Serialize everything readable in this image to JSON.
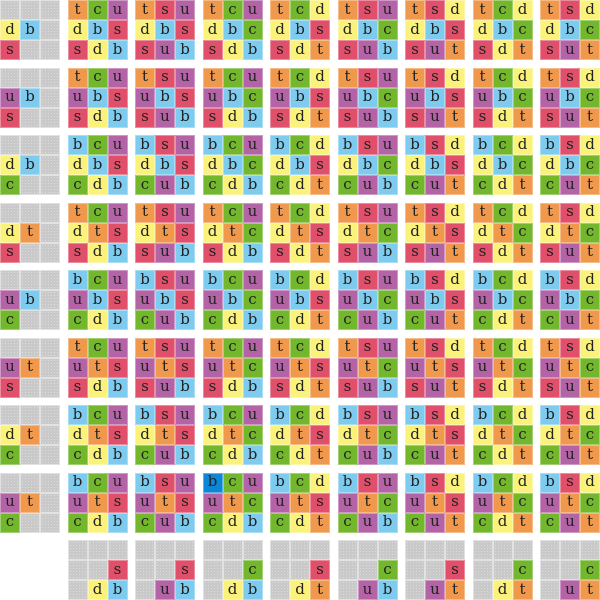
{
  "empty_marker": ".",
  "letter_colors": {
    "t": "#f0984c",
    "c": "#73b72c",
    "u": "#b464a6",
    "s": "#e0506b",
    "d": "#fbf27c",
    "b": "#7dcbef"
  },
  "selected_color": "#0b87d6",
  "selected": {
    "row": 7,
    "col": 3,
    "cell": 0
  },
  "grid": [
    [
      "...db.s..",
      "tcudbssdb",
      "tsudbssub",
      "tcudbcsdb",
      "tcddbssdt",
      "tsudbcsub",
      "tsddbssut",
      "tcddbcsdt",
      "tsddbcsut"
    ],
    [
      "...ub.s..",
      "tcuubssdb",
      "tsuubssub",
      "tcuubcsdb",
      "tcdubssdt",
      "tsuubcsub",
      "tsdubssut",
      "tcdubcsdt",
      "tsdubcsut"
    ],
    [
      "...db.c..",
      "bcudbscdb",
      "bsudbscub",
      "bcudbccdb",
      "bcddbscdt",
      "bsudbccub",
      "bsddbscut",
      "bcddbccdt",
      "bsddbccut"
    ],
    [
      "...dt.s..",
      "tcudtssdb",
      "tsudtssub",
      "tcudtcsdb",
      "tcddtssdt",
      "tsudtcsub",
      "tsddtssut",
      "tcddtcsdt",
      "tsddtcsut"
    ],
    [
      "...ub.c..",
      "bcuubscdb",
      "bsuubscub",
      "bcuubccdb",
      "bcdubscdt",
      "bsuubccub",
      "bsdubscut",
      "bcdubccdt",
      "bsdubccut"
    ],
    [
      "...ut.s..",
      "tcuutssdb",
      "tsuutssub",
      "tcuutcsdb",
      "tcdutssdt",
      "tsuutcsub",
      "tsdutssut",
      "tcdutcsdt",
      "tsdutcsut"
    ],
    [
      "...dt.c..",
      "bcudtscdb",
      "bsudtscub",
      "bcudtccdb",
      "bcddtscdt",
      "bsudtccub",
      "bsddtscut",
      "bcddtccdt",
      "bsddtccut"
    ],
    [
      "...ut.c..",
      "bcuutscdb",
      "bsuutscub",
      "bcuutccdb",
      "bcdutscdt",
      "bsuutccub",
      "bsdutscut",
      "bcdutccdt",
      "bsdutccut"
    ],
    [
      null,
      ".....s.db",
      ".....s.ub",
      ".....c.db",
      ".....s.dt",
      ".....c.ub",
      ".....s.ut",
      ".....c.dt",
      ".....c.ut"
    ]
  ]
}
